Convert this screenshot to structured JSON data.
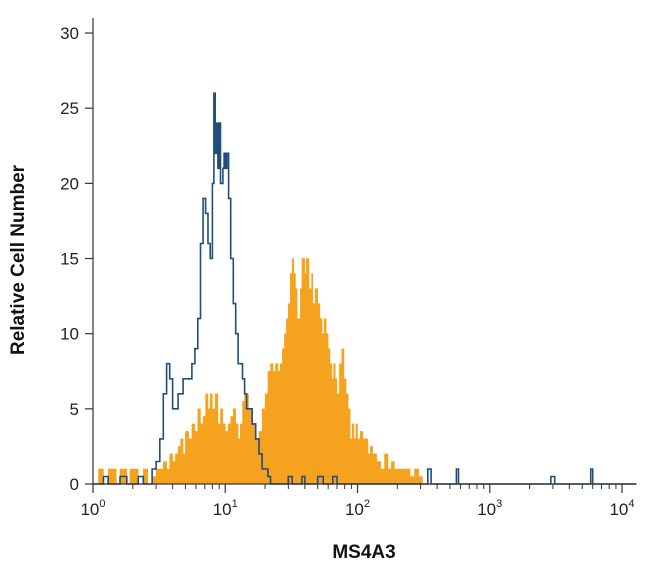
{
  "chart_data": {
    "type": "area",
    "title": "",
    "xlabel": "MS4A3",
    "ylabel": "Relative Cell Number",
    "x_scale": "log",
    "xlim": [
      1,
      12000
    ],
    "ylim": [
      0,
      31
    ],
    "x_ticks": [
      {
        "base": "10",
        "exp": "0"
      },
      {
        "base": "10",
        "exp": "1"
      },
      {
        "base": "10",
        "exp": "2"
      },
      {
        "base": "10",
        "exp": "3"
      },
      {
        "base": "10",
        "exp": "4"
      }
    ],
    "y_ticks": [
      "0",
      "5",
      "10",
      "15",
      "20",
      "25",
      "30"
    ],
    "grid": false,
    "legend": "none",
    "series": [
      {
        "style": "filled",
        "color": "#f5a31f",
        "points": [
          [
            1.0,
            0
          ],
          [
            1.1,
            1
          ],
          [
            1.2,
            0
          ],
          [
            1.3,
            1
          ],
          [
            1.4,
            1
          ],
          [
            1.5,
            0
          ],
          [
            1.6,
            1
          ],
          [
            1.7,
            1
          ],
          [
            1.8,
            0
          ],
          [
            1.9,
            1
          ],
          [
            2.0,
            1
          ],
          [
            2.2,
            0
          ],
          [
            2.4,
            1
          ],
          [
            2.6,
            0
          ],
          [
            2.8,
            0.5
          ],
          [
            3.0,
            1
          ],
          [
            3.2,
            1
          ],
          [
            3.4,
            1.5
          ],
          [
            3.6,
            1
          ],
          [
            3.8,
            2
          ],
          [
            4.0,
            1.5
          ],
          [
            4.2,
            2
          ],
          [
            4.4,
            2.5
          ],
          [
            4.6,
            3
          ],
          [
            4.8,
            2
          ],
          [
            5.0,
            3.5
          ],
          [
            5.3,
            3
          ],
          [
            5.6,
            4
          ],
          [
            5.9,
            3.5
          ],
          [
            6.2,
            5
          ],
          [
            6.5,
            4
          ],
          [
            6.8,
            4.5
          ],
          [
            7.1,
            6
          ],
          [
            7.4,
            5
          ],
          [
            7.7,
            6
          ],
          [
            8.0,
            5
          ],
          [
            8.4,
            6
          ],
          [
            8.8,
            4
          ],
          [
            9.2,
            5
          ],
          [
            9.6,
            4
          ],
          [
            10.0,
            3.5
          ],
          [
            10.5,
            4
          ],
          [
            11,
            4.5
          ],
          [
            11.5,
            5
          ],
          [
            12,
            4
          ],
          [
            12.5,
            3
          ],
          [
            13,
            4
          ],
          [
            13.5,
            5.5
          ],
          [
            14,
            6
          ],
          [
            14.5,
            6
          ],
          [
            15,
            5
          ],
          [
            16,
            4
          ],
          [
            17,
            3
          ],
          [
            18,
            3.5
          ],
          [
            19,
            5
          ],
          [
            20,
            6
          ],
          [
            21,
            7.5
          ],
          [
            22,
            8
          ],
          [
            23,
            7.5
          ],
          [
            24,
            8
          ],
          [
            25,
            7.5
          ],
          [
            26,
            8
          ],
          [
            27,
            9
          ],
          [
            28,
            10
          ],
          [
            29,
            11
          ],
          [
            30,
            12
          ],
          [
            31,
            14
          ],
          [
            32,
            15
          ],
          [
            33,
            14
          ],
          [
            34,
            13
          ],
          [
            35,
            11
          ],
          [
            36,
            11
          ],
          [
            37,
            13
          ],
          [
            38,
            15
          ],
          [
            39,
            15
          ],
          [
            40,
            14
          ],
          [
            41,
            15
          ],
          [
            42,
            15
          ],
          [
            43,
            13
          ],
          [
            44,
            13
          ],
          [
            45,
            14
          ],
          [
            46,
            12
          ],
          [
            48,
            13
          ],
          [
            50,
            12
          ],
          [
            52,
            11
          ],
          [
            54,
            10
          ],
          [
            56,
            11
          ],
          [
            58,
            10
          ],
          [
            60,
            9
          ],
          [
            62,
            8
          ],
          [
            64,
            7
          ],
          [
            66,
            8
          ],
          [
            68,
            7
          ],
          [
            70,
            6
          ],
          [
            73,
            8
          ],
          [
            76,
            9
          ],
          [
            79,
            7
          ],
          [
            82,
            6
          ],
          [
            85,
            5
          ],
          [
            88,
            3
          ],
          [
            91,
            4
          ],
          [
            94,
            3
          ],
          [
            97,
            4
          ],
          [
            100,
            3
          ],
          [
            105,
            3.5
          ],
          [
            110,
            3
          ],
          [
            115,
            3
          ],
          [
            120,
            2
          ],
          [
            125,
            2.5
          ],
          [
            130,
            2
          ],
          [
            140,
            1.5
          ],
          [
            150,
            1
          ],
          [
            160,
            2
          ],
          [
            170,
            1
          ],
          [
            180,
            1.5
          ],
          [
            190,
            1
          ],
          [
            200,
            1
          ],
          [
            215,
            1
          ],
          [
            230,
            1
          ],
          [
            250,
            0.5
          ],
          [
            270,
            1
          ],
          [
            290,
            0.5
          ],
          [
            310,
            0
          ]
        ]
      },
      {
        "style": "outline",
        "color": "#1f4e79",
        "points": [
          [
            1.0,
            0
          ],
          [
            1.1,
            0
          ],
          [
            1.2,
            0.5
          ],
          [
            1.3,
            0
          ],
          [
            1.5,
            0
          ],
          [
            1.6,
            0.5
          ],
          [
            1.8,
            0
          ],
          [
            2.0,
            0
          ],
          [
            2.2,
            0.5
          ],
          [
            2.4,
            0
          ],
          [
            2.6,
            0
          ],
          [
            2.8,
            1
          ],
          [
            3.0,
            1.5
          ],
          [
            3.2,
            3
          ],
          [
            3.4,
            6
          ],
          [
            3.6,
            8
          ],
          [
            3.8,
            7
          ],
          [
            4.0,
            5
          ],
          [
            4.2,
            5
          ],
          [
            4.4,
            6
          ],
          [
            4.6,
            6
          ],
          [
            4.8,
            7
          ],
          [
            5.0,
            7
          ],
          [
            5.3,
            7
          ],
          [
            5.6,
            8
          ],
          [
            5.9,
            9
          ],
          [
            6.2,
            11
          ],
          [
            6.5,
            16
          ],
          [
            6.8,
            19
          ],
          [
            7.1,
            18
          ],
          [
            7.4,
            16
          ],
          [
            7.7,
            15
          ],
          [
            8.0,
            20
          ],
          [
            8.2,
            26
          ],
          [
            8.4,
            22
          ],
          [
            8.6,
            24
          ],
          [
            8.8,
            21
          ],
          [
            9.0,
            24
          ],
          [
            9.2,
            20
          ],
          [
            9.4,
            20
          ],
          [
            9.6,
            21
          ],
          [
            9.8,
            22
          ],
          [
            10.0,
            21
          ],
          [
            10.3,
            22
          ],
          [
            10.6,
            19
          ],
          [
            11.0,
            15
          ],
          [
            11.5,
            12
          ],
          [
            12,
            10
          ],
          [
            12.5,
            8
          ],
          [
            13,
            8
          ],
          [
            13.5,
            7
          ],
          [
            14,
            6
          ],
          [
            14.5,
            5
          ],
          [
            15,
            5
          ],
          [
            16,
            4
          ],
          [
            17,
            3
          ],
          [
            18,
            2
          ],
          [
            19,
            1
          ],
          [
            20,
            1
          ],
          [
            21,
            0.5
          ],
          [
            22,
            0
          ],
          [
            25,
            0
          ],
          [
            28,
            0
          ],
          [
            30,
            0.5
          ],
          [
            32,
            0
          ],
          [
            35,
            0
          ],
          [
            38,
            0.5
          ],
          [
            40,
            0
          ],
          [
            45,
            0
          ],
          [
            50,
            0.5
          ],
          [
            55,
            0
          ],
          [
            60,
            0
          ],
          [
            65,
            0.5
          ],
          [
            70,
            0
          ],
          [
            100,
            0
          ],
          [
            200,
            0
          ],
          [
            340,
            1
          ],
          [
            360,
            0
          ],
          [
            560,
            1
          ],
          [
            580,
            0
          ],
          [
            2900,
            0.5
          ],
          [
            3100,
            0
          ],
          [
            5800,
            1
          ],
          [
            6000,
            0
          ],
          [
            12000,
            0
          ]
        ]
      }
    ]
  }
}
